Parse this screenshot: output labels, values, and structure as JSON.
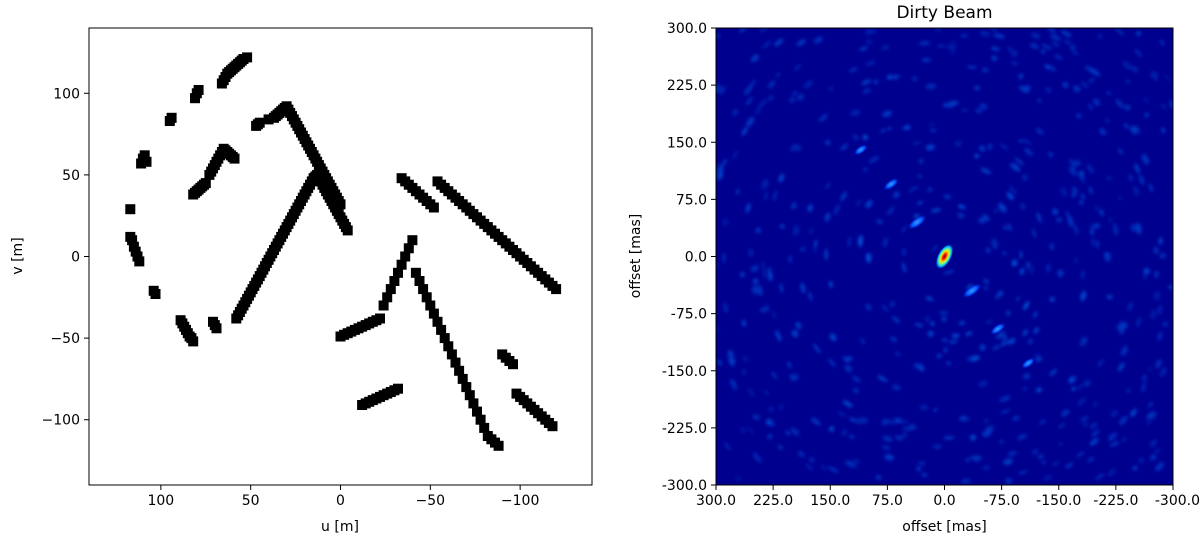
{
  "chart_data": [
    {
      "type": "scatter",
      "title": "",
      "xlabel": "u [m]",
      "ylabel": "v [m]",
      "xlim": [
        140,
        -140
      ],
      "ylim": [
        -140,
        140
      ],
      "x_ticks": [
        100,
        50,
        0,
        -50,
        -100
      ],
      "x_tick_labels": [
        "100",
        "50",
        "0",
        "−50",
        "−100"
      ],
      "y_ticks": [
        100,
        50,
        0,
        -50,
        -100
      ],
      "y_tick_labels": [
        "100",
        "50",
        "0",
        "−50",
        "−100"
      ],
      "marker": "square",
      "marker_color": "#000000",
      "grid": false,
      "series": [
        {
          "x": [
            117,
            117,
            116,
            115,
            114,
            113,
            112,
            111,
            110,
            109,
            108,
            104,
            103,
            95,
            94,
            89,
            88,
            87,
            86,
            85,
            84,
            83,
            82,
            81,
            80,
            79,
            71,
            70,
            69,
            66,
            65,
            64,
            63,
            62,
            61,
            60,
            59,
            58,
            57,
            56,
            55,
            54,
            52,
            47,
            46,
            45,
            40,
            37,
            36,
            35,
            34,
            33,
            32,
            31,
            30,
            29,
            28,
            27,
            26,
            25,
            24,
            23,
            22,
            21,
            20,
            19,
            18,
            17,
            16,
            15,
            14,
            13,
            12,
            11,
            10,
            9,
            8,
            7,
            6,
            5,
            4,
            3,
            2,
            1,
            0
          ],
          "y": [
            29,
            12,
            10,
            6,
            3,
            0,
            -3,
            57,
            60,
            62,
            58,
            -21,
            -23,
            83,
            85,
            -39,
            -41,
            -43,
            -45,
            -47,
            -49,
            -50,
            -52,
            97,
            100,
            102,
            -40,
            -42,
            -44,
            106,
            108,
            110,
            112,
            113,
            114,
            115,
            116,
            117,
            118,
            119,
            120,
            121,
            122,
            80,
            81,
            82,
            84,
            85,
            86,
            87,
            88,
            89,
            90,
            91,
            92,
            90,
            88,
            86,
            84,
            82,
            80,
            78,
            76,
            74,
            72,
            70,
            68,
            66,
            64,
            62,
            60,
            58,
            56,
            54,
            52,
            50,
            48,
            46,
            44,
            42,
            40,
            38,
            36,
            34,
            32
          ]
        },
        {
          "x": [
            82,
            81,
            80,
            79,
            78,
            77,
            76,
            75,
            73,
            72,
            71,
            70,
            69,
            68,
            67,
            66,
            65,
            64,
            63,
            62,
            61,
            60,
            59,
            58,
            57,
            56,
            55,
            54,
            53,
            52,
            51,
            50,
            49,
            48,
            47,
            46,
            45,
            44,
            43,
            42,
            41,
            40,
            39,
            38,
            37,
            36,
            35,
            34,
            33,
            32,
            31,
            30,
            29,
            28,
            27,
            26,
            25,
            24,
            23,
            22,
            21,
            20,
            19,
            18,
            17,
            16,
            15,
            14,
            13,
            12,
            11,
            10,
            9,
            8,
            7,
            6,
            5,
            4,
            3,
            2,
            1,
            0,
            -1,
            -2,
            -3,
            -4
          ],
          "y": [
            38,
            39,
            40,
            41,
            42,
            43,
            44,
            45,
            50,
            52,
            54,
            56,
            58,
            60,
            62,
            64,
            66,
            65,
            64,
            63,
            62,
            61,
            60,
            -38,
            -36,
            -34,
            -32,
            -30,
            -28,
            -26,
            -24,
            -22,
            -20,
            -18,
            -16,
            -14,
            -12,
            -10,
            -8,
            -6,
            -4,
            -2,
            0,
            2,
            4,
            6,
            8,
            10,
            12,
            14,
            16,
            18,
            20,
            22,
            24,
            26,
            28,
            30,
            32,
            34,
            36,
            38,
            40,
            42,
            44,
            46,
            48,
            49,
            50,
            48,
            46,
            44,
            42,
            40,
            38,
            36,
            34,
            32,
            30,
            28,
            26,
            24,
            22,
            20,
            18,
            16
          ]
        },
        {
          "x": [
            0,
            -2,
            -4,
            -6,
            -8,
            -10,
            -12,
            -14,
            -16,
            -18,
            -20,
            -22,
            -24,
            -26,
            -28,
            -30,
            -32,
            -34,
            -36,
            -38,
            -40,
            -42,
            -44,
            -46,
            -48,
            -50,
            -52,
            -54,
            -56,
            -58,
            -60,
            -62,
            -64,
            -66,
            -68,
            -70,
            -72,
            -74,
            -76,
            -78,
            -80,
            -82,
            -84,
            -86,
            -88,
            -90,
            -92,
            -94,
            -96,
            -98,
            -100,
            -102,
            -104,
            -106,
            -108,
            -110,
            -112,
            -114,
            -116,
            -118
          ],
          "y": [
            -49,
            -48,
            -47,
            -46,
            -45,
            -44,
            -43,
            -42,
            -41,
            -40,
            -39,
            -38,
            -30,
            -25,
            -20,
            -15,
            -10,
            -5,
            0,
            5,
            10,
            -10,
            -15,
            -20,
            -25,
            -30,
            -35,
            -40,
            -45,
            -50,
            -55,
            -60,
            -65,
            -70,
            -75,
            -80,
            -85,
            -90,
            -95,
            -100,
            -105,
            -110,
            -112,
            -114,
            -116,
            -60,
            -62,
            -64,
            -66,
            -84,
            -86,
            -88,
            -90,
            -92,
            -94,
            -96,
            -98,
            -100,
            -102,
            -104
          ]
        },
        {
          "x": [
            -12,
            -14,
            -16,
            -18,
            -20,
            -22,
            -24,
            -26,
            -28,
            -30,
            -32,
            -34,
            -36,
            -38,
            -40,
            -42,
            -44,
            -46,
            -48,
            -50,
            -52,
            -54,
            -56,
            -58,
            -60,
            -62,
            -64,
            -66,
            -68,
            -70,
            -72,
            -74,
            -76,
            -78,
            -80,
            -82,
            -84,
            -86,
            -88,
            -90,
            -92,
            -94,
            -96,
            -98,
            -100,
            -102,
            -104,
            -106,
            -108,
            -110,
            -112,
            -114,
            -116,
            -118,
            -120
          ],
          "y": [
            -91,
            -90,
            -89,
            -88,
            -87,
            -86,
            -85,
            -84,
            -83,
            -82,
            -81,
            48,
            46,
            44,
            42,
            40,
            38,
            36,
            34,
            32,
            30,
            46,
            44,
            42,
            40,
            38,
            36,
            34,
            32,
            30,
            28,
            26,
            24,
            22,
            20,
            18,
            16,
            14,
            12,
            10,
            8,
            6,
            4,
            2,
            0,
            -2,
            -4,
            -6,
            -8,
            -10,
            -12,
            -14,
            -16,
            -18,
            -20
          ]
        }
      ]
    },
    {
      "type": "heatmap",
      "title": "Dirty Beam",
      "xlabel": "offset [mas]",
      "ylabel": "offset [mas]",
      "xlim": [
        300,
        -300
      ],
      "ylim": [
        -300,
        300
      ],
      "x_ticks": [
        300,
        225,
        150,
        75,
        0,
        -75,
        -150,
        -225,
        -300
      ],
      "x_tick_labels": [
        "300.0",
        "225.0",
        "150.0",
        "75.0",
        "0.0",
        "-75.0",
        "-150.0",
        "-225.0",
        "-300.0"
      ],
      "y_ticks": [
        300,
        225,
        150,
        75,
        0,
        -75,
        -150,
        -225,
        -300
      ],
      "y_tick_labels": [
        "300.0",
        "225.0",
        "150.0",
        "75.0",
        "0.0",
        "-75.0",
        "-150.0",
        "-225.0",
        "-300.0"
      ],
      "colormap": "jet",
      "grid": false,
      "peak": {
        "x": 0,
        "y": 0,
        "value": 1.0
      },
      "sidelobes": [
        {
          "x": 36,
          "y": 45,
          "value": 0.35
        },
        {
          "x": -36,
          "y": -45,
          "value": 0.35
        },
        {
          "x": 70,
          "y": 95,
          "value": 0.25
        },
        {
          "x": -70,
          "y": -95,
          "value": 0.25
        },
        {
          "x": 110,
          "y": 140,
          "value": 0.2
        },
        {
          "x": -110,
          "y": -140,
          "value": 0.2
        }
      ]
    }
  ]
}
